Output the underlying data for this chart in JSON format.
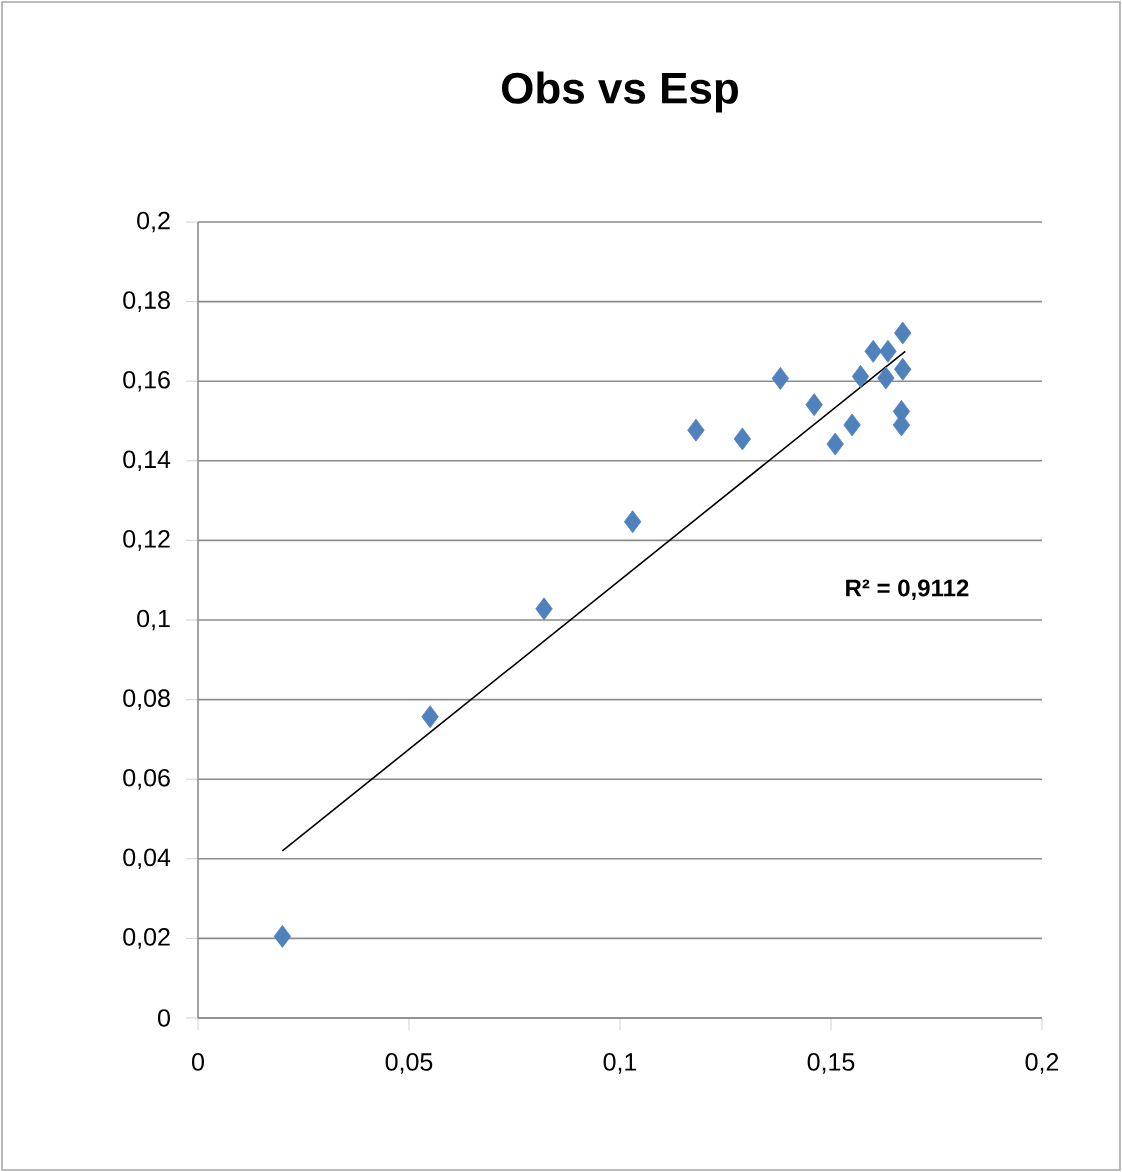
{
  "chart_data": {
    "type": "scatter",
    "title": "Obs vs Esp",
    "marker": "diamond",
    "grid": "y",
    "xlim": [
      0,
      0.2
    ],
    "ylim": [
      0,
      0.2
    ],
    "xticks": [
      0,
      {
        "value": 0.05,
        "label": "0,05"
      },
      {
        "value": 0.1,
        "label": "0,1"
      },
      {
        "value": 0.15,
        "label": "0,15"
      },
      {
        "value": 0.2,
        "label": "0,2"
      }
    ],
    "yticks": [
      0,
      {
        "value": 0.02,
        "label": "0,02"
      },
      {
        "value": 0.04,
        "label": "0,04"
      },
      {
        "value": 0.06,
        "label": "0,06"
      },
      {
        "value": 0.08,
        "label": "0,08"
      },
      {
        "value": 0.1,
        "label": "0,1"
      },
      {
        "value": 0.12,
        "label": "0,12"
      },
      {
        "value": 0.14,
        "label": "0,14"
      },
      {
        "value": 0.16,
        "label": "0,16"
      },
      {
        "value": 0.18,
        "label": "0,18"
      },
      {
        "value": 0.2,
        "label": "0,2"
      }
    ],
    "series": [
      {
        "color": "#4f81bd",
        "x": [
          0.02,
          0.055,
          0.082,
          0.103,
          0.118,
          0.129,
          0.138,
          0.146,
          0.151,
          0.155,
          0.157,
          0.16,
          0.1635,
          0.163,
          0.167,
          0.167,
          0.1667,
          0.1667
        ],
        "values": [
          0.0205,
          0.0757,
          0.1028,
          0.1247,
          0.1477,
          0.1455,
          0.1607,
          0.1541,
          0.1442,
          0.149,
          0.1612,
          0.1675,
          0.1675,
          0.1608,
          0.1721,
          0.163,
          0.1524,
          0.149
        ]
      },
      {
        "type": "line",
        "marker": "none",
        "color": "#000000",
        "x": [
          0.02,
          0.1676
        ],
        "values": [
          0.042,
          0.1675
        ]
      }
    ],
    "annotations": [
      "R² = 0,9112"
    ]
  }
}
